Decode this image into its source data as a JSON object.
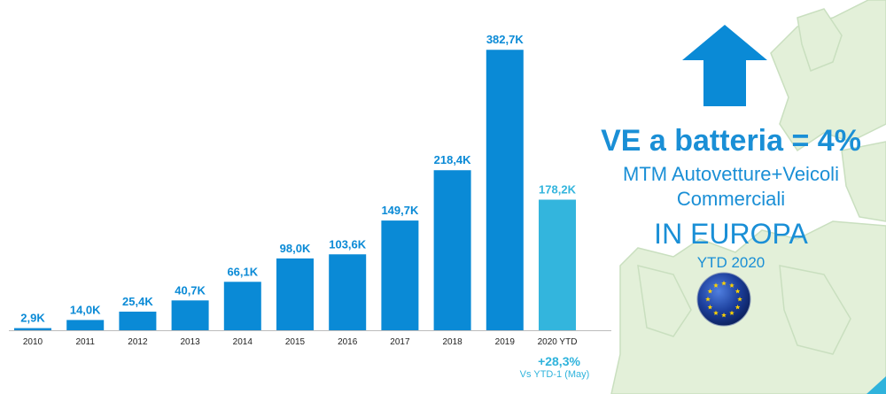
{
  "chart_data": {
    "type": "bar",
    "categories": [
      "2010",
      "2011",
      "2012",
      "2013",
      "2014",
      "2015",
      "2016",
      "2017",
      "2018",
      "2019",
      "2020 YTD"
    ],
    "values": [
      2.9,
      14.0,
      25.4,
      40.7,
      66.1,
      98.0,
      103.6,
      149.7,
      218.4,
      382.7,
      178.2
    ],
    "value_labels": [
      "2,9K",
      "14,0K",
      "25,4K",
      "40,7K",
      "66,1K",
      "98,0K",
      "103,6K",
      "149,7K",
      "218,4K",
      "382,7K",
      "178,2K"
    ],
    "unit": "K",
    "ylim": [
      0,
      383
    ],
    "grid": false,
    "colors": {
      "bar": "#0a8ad6",
      "highlight_bar": "#33b5dd"
    },
    "growth": {
      "value": "+28,3%",
      "note": "Vs YTD-1 (May)"
    }
  },
  "callout": {
    "headline": "VE a batteria = 4%",
    "line1": "MTM Autovetture+Veicoli",
    "line2": "Commerciali",
    "line3": "IN EUROPA",
    "line4": "YTD 2020",
    "arrow_icon": "up-arrow-icon",
    "flag_icon": "eu-flag-icon",
    "colors": {
      "text": "#1a8fd6",
      "arrow": "#0a8ad6"
    }
  }
}
